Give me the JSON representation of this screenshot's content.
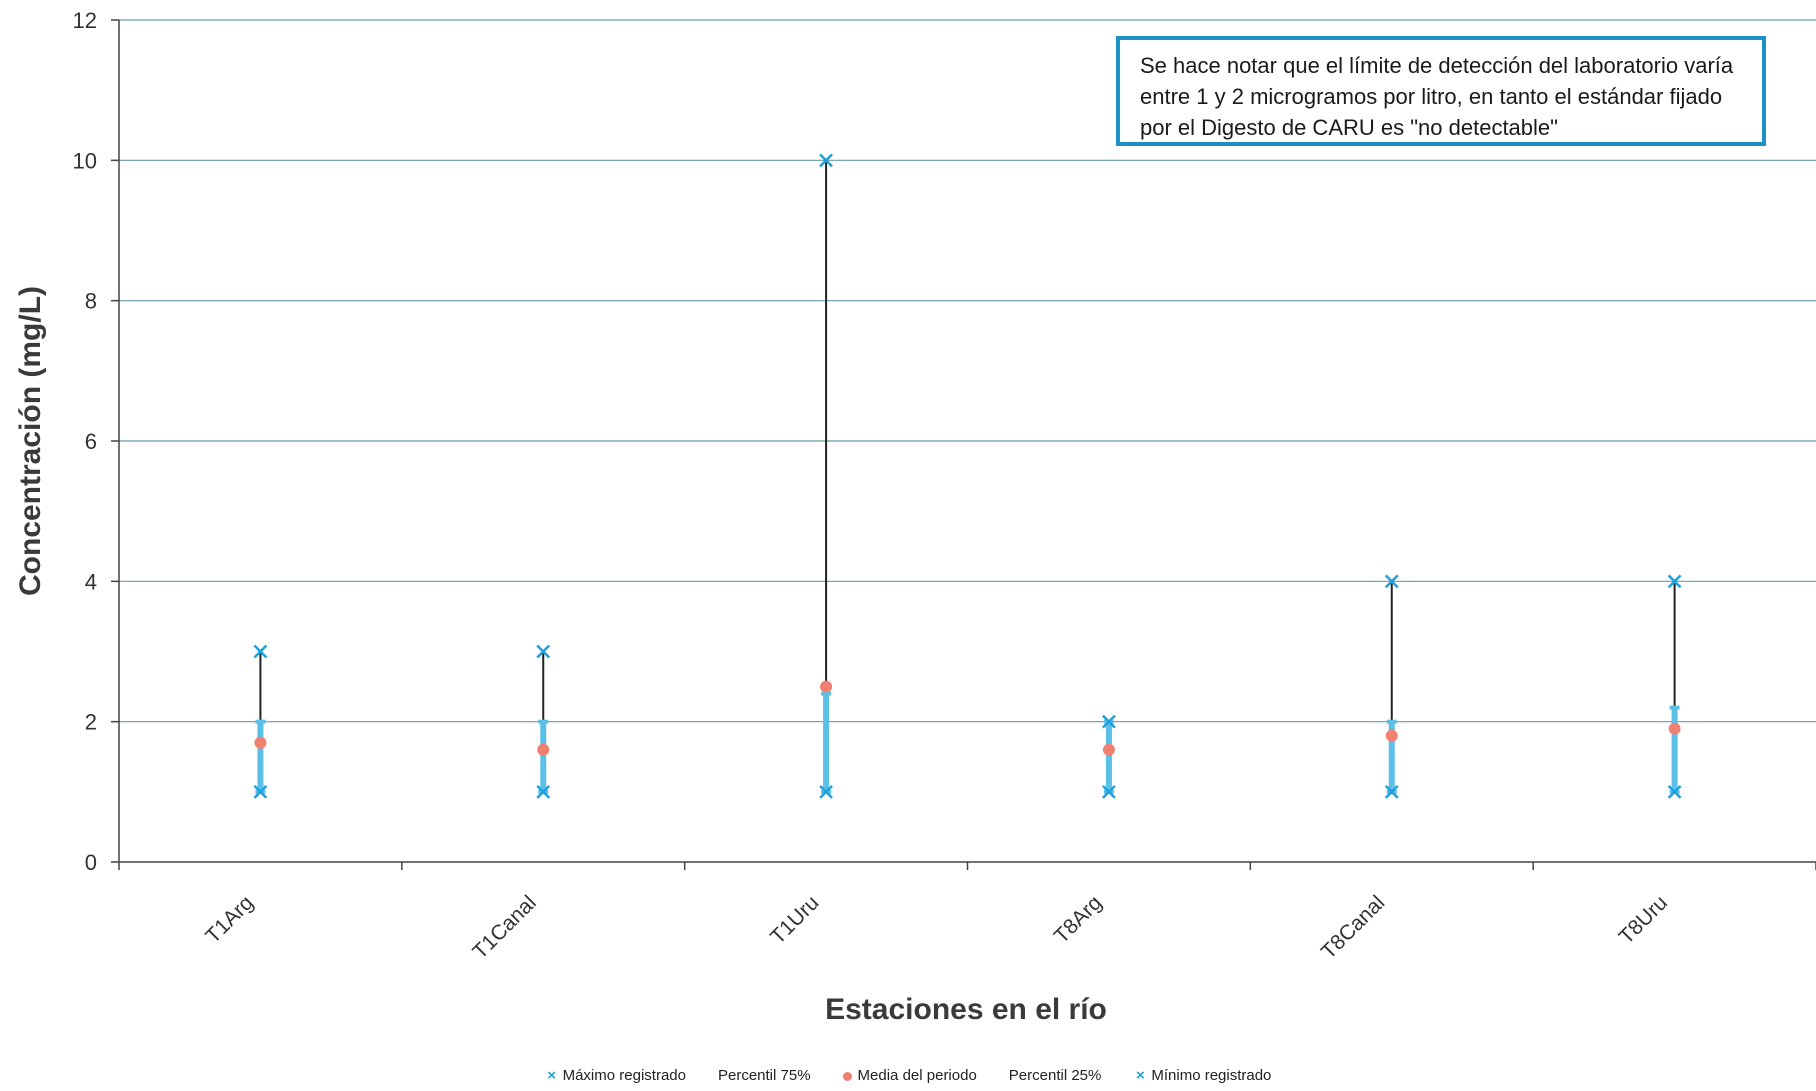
{
  "chart_data": {
    "type": "scatter",
    "ylabel": "Concentración (mg/L)",
    "xlabel": "Estaciones en el río",
    "ylim": [
      0,
      12
    ],
    "yticks": [
      0,
      2,
      4,
      6,
      8,
      10,
      12
    ],
    "grid": true,
    "categories": [
      "T1Arg",
      "T1Canal",
      "T1Uru",
      "T8Arg",
      "T8Canal",
      "T8Uru"
    ],
    "series": [
      {
        "name": "Máximo registrado",
        "marker": "x",
        "color": "#1fa0d8",
        "values": [
          3,
          3,
          10,
          2,
          4,
          4
        ]
      },
      {
        "name": "Percentil 75%",
        "marker": "dash",
        "color": "#5bc0e8",
        "values": [
          2,
          2,
          2.4,
          2,
          2,
          2.2
        ]
      },
      {
        "name": "Media del periodo",
        "marker": "circle",
        "color": "#f08070",
        "values": [
          1.7,
          1.6,
          2.5,
          1.6,
          1.8,
          1.9
        ]
      },
      {
        "name": "Percentil 25%",
        "marker": "dash",
        "color": "#5bc0e8",
        "values": [
          1,
          1,
          1,
          1,
          1,
          1
        ]
      },
      {
        "name": "Mínimo registrado",
        "marker": "x",
        "color": "#1fa0d8",
        "values": [
          1,
          1,
          1,
          1,
          1,
          1
        ]
      }
    ],
    "annotation": "Se hace notar que el límite de detección del laboratorio varía entre 1 y 2 microgramos por litro, en tanto el estándar fijado  por el Digesto de CARU es \"no detectable\"",
    "legend_position": "bottom"
  }
}
